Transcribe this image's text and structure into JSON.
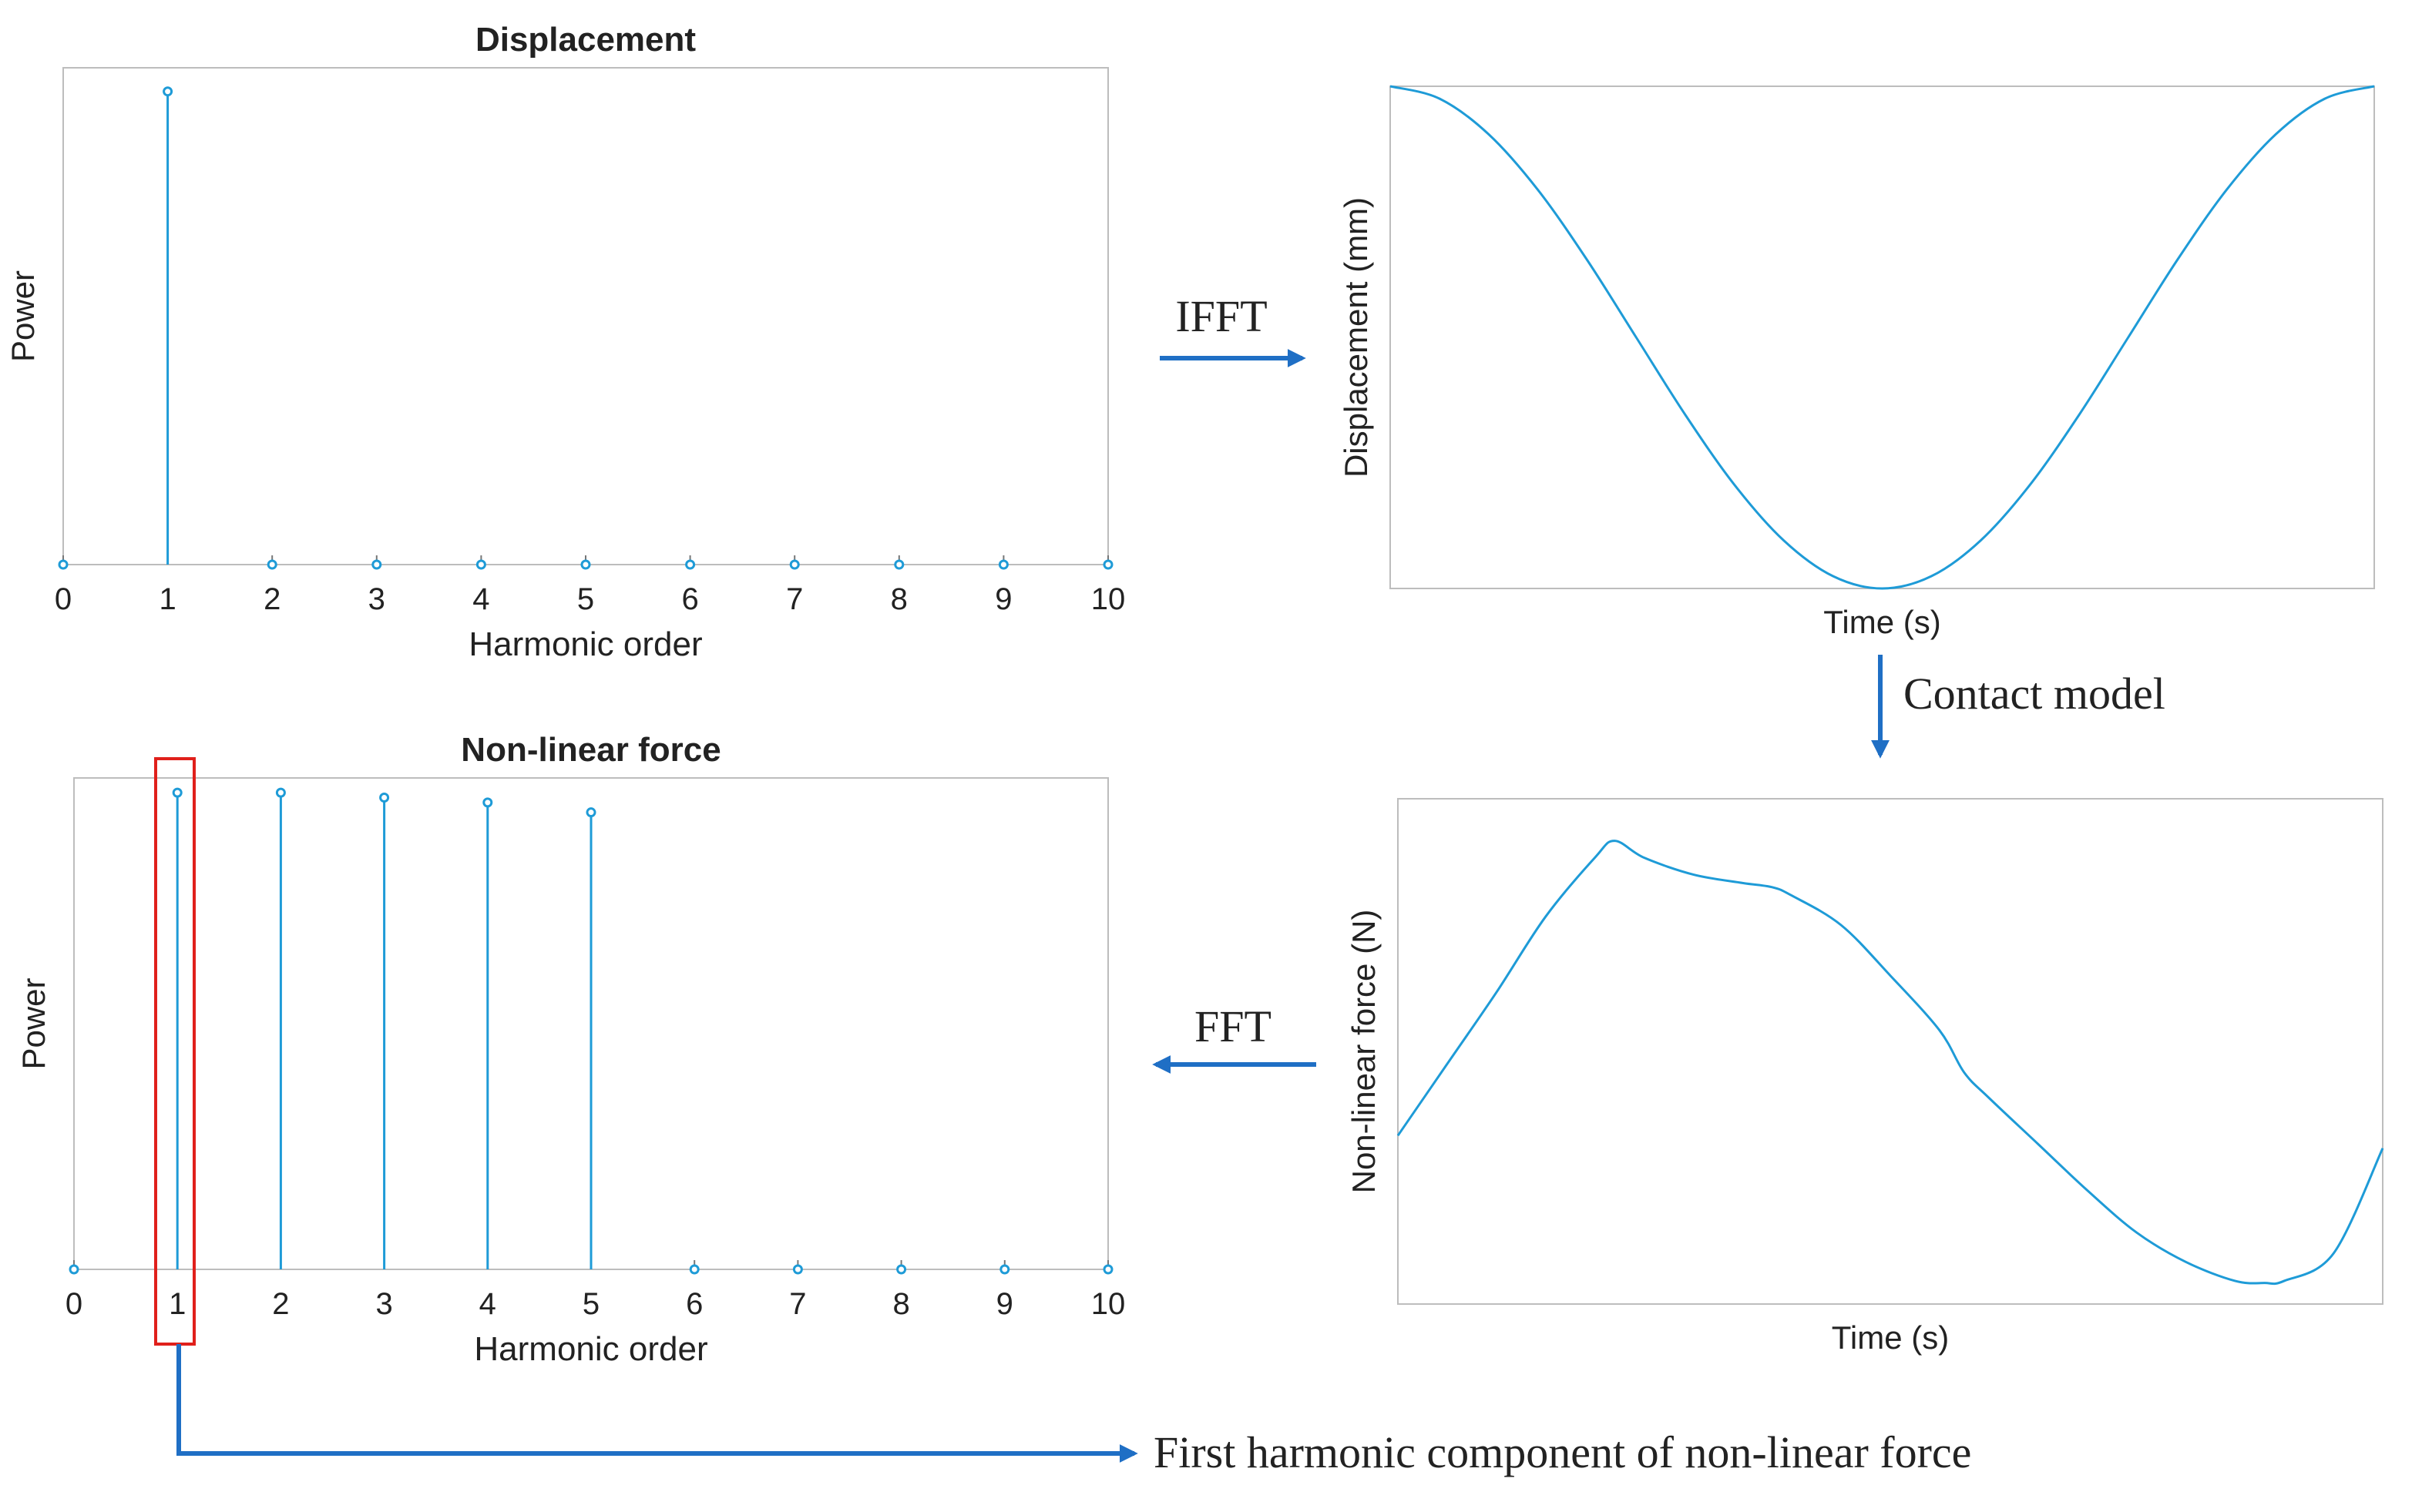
{
  "colors": {
    "series": "#1e9bd7",
    "arrow": "#1f6fc5",
    "highlight": "#e0201b",
    "axis": "#bdbdbd",
    "text": "#222222"
  },
  "arrows": {
    "ifft": "IFFT",
    "contact": "Contact model",
    "fft": "FFT",
    "first_harmonic": "First harmonic component of non-linear force"
  },
  "chart_data": [
    {
      "id": "displacement-spectrum",
      "type": "stem",
      "title": "Displacement",
      "xlabel": "Harmonic order",
      "ylabel": "Power",
      "x": [
        0,
        1,
        2,
        3,
        4,
        5,
        6,
        7,
        8,
        9,
        10
      ],
      "values": [
        0,
        1.0,
        0,
        0,
        0,
        0,
        0,
        0,
        0,
        0,
        0
      ],
      "xlim": [
        0,
        10
      ],
      "ylim": [
        0,
        1.05
      ],
      "tick_labels": [
        "0",
        "1",
        "2",
        "3",
        "4",
        "5",
        "6",
        "7",
        "8",
        "9",
        "10"
      ]
    },
    {
      "id": "nonlinear-force-spectrum",
      "type": "stem",
      "title": "Non-linear force",
      "xlabel": "Harmonic order",
      "ylabel": "Power",
      "x": [
        0,
        1,
        2,
        3,
        4,
        5,
        6,
        7,
        8,
        9,
        10
      ],
      "values": [
        0,
        0.97,
        0.97,
        0.96,
        0.95,
        0.93,
        0,
        0,
        0,
        0,
        0
      ],
      "xlim": [
        0,
        10
      ],
      "ylim": [
        0,
        1.0
      ],
      "tick_labels": [
        "0",
        "1",
        "2",
        "3",
        "4",
        "5",
        "6",
        "7",
        "8",
        "9",
        "10"
      ],
      "highlight_harmonic": 1
    },
    {
      "id": "displacement-time",
      "type": "line",
      "title": "",
      "xlabel": "Time (s)",
      "ylabel": "Displacement (mm)",
      "x": [
        0,
        0.05,
        0.1,
        0.15,
        0.2,
        0.25,
        0.3,
        0.35,
        0.4,
        0.45,
        0.5,
        0.55,
        0.6,
        0.65,
        0.7,
        0.75,
        0.8,
        0.85,
        0.9,
        0.95,
        1.0
      ],
      "values": [
        1.0,
        0.951,
        0.809,
        0.588,
        0.309,
        0.0,
        -0.309,
        -0.588,
        -0.809,
        -0.951,
        -1.0,
        -0.951,
        -0.809,
        -0.588,
        -0.309,
        0.0,
        0.309,
        0.588,
        0.809,
        0.951,
        1.0
      ],
      "xlim": [
        0,
        1
      ],
      "ylim": [
        -1,
        1
      ]
    },
    {
      "id": "nonlinear-force-time",
      "type": "line",
      "title": "",
      "xlabel": "Time (s)",
      "ylabel": "Non-linear force (N)",
      "x": [
        0,
        0.05,
        0.1,
        0.15,
        0.2,
        0.22,
        0.25,
        0.3,
        0.35,
        0.38,
        0.4,
        0.45,
        0.5,
        0.55,
        0.575,
        0.6,
        0.65,
        0.7,
        0.75,
        0.8,
        0.85,
        0.88,
        0.9,
        0.95,
        1.0
      ],
      "values": [
        0.3,
        0.47,
        0.64,
        0.82,
        0.96,
        1.0,
        0.96,
        0.92,
        0.9,
        0.89,
        0.87,
        0.8,
        0.68,
        0.55,
        0.45,
        0.39,
        0.28,
        0.17,
        0.07,
        0.0,
        -0.045,
        -0.05,
        -0.045,
        0.02,
        0.27
      ],
      "xlim": [
        0,
        1
      ],
      "ylim": [
        -0.1,
        1.1
      ]
    }
  ]
}
